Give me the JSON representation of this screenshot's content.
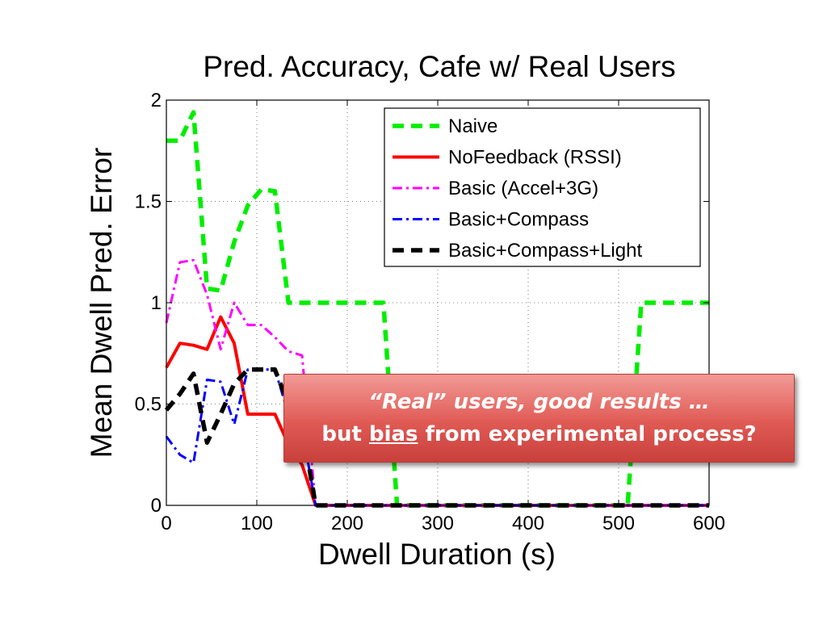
{
  "chart_data": {
    "type": "line",
    "title": "Pred. Accuracy, Cafe w/ Real Users",
    "xlabel": "Dwell Duration (s)",
    "ylabel": "Mean Dwell Pred. Error",
    "xlim": [
      0,
      600
    ],
    "ylim": [
      0,
      2
    ],
    "xticks": [
      "0",
      "100",
      "200",
      "300",
      "400",
      "500",
      "600"
    ],
    "yticks": [
      "0",
      "0.5",
      "1",
      "1.5",
      "2"
    ],
    "grid": true,
    "legend_position": "top-right",
    "series": [
      {
        "name": "Naive",
        "color": "#00ee00",
        "style": "dashed",
        "x": [
          0,
          15,
          30,
          45,
          60,
          75,
          90,
          105,
          120,
          135,
          150,
          165,
          180,
          195,
          210,
          225,
          240,
          255,
          270,
          300,
          400,
          495,
          510,
          525,
          540,
          600
        ],
        "y": [
          1.8,
          1.8,
          1.94,
          1.07,
          1.06,
          1.3,
          1.48,
          1.56,
          1.55,
          1.0,
          1.0,
          1.0,
          1.0,
          1.0,
          1.0,
          1.0,
          1.0,
          0.0,
          0.0,
          0.0,
          0.0,
          0.0,
          0.0,
          1.0,
          1.0,
          1.0
        ]
      },
      {
        "name": "NoFeedback (RSSI)",
        "color": "#ff0000",
        "style": "solid",
        "x": [
          0,
          15,
          30,
          45,
          60,
          75,
          90,
          105,
          120,
          135,
          150,
          165,
          200,
          300,
          400,
          500,
          600
        ],
        "y": [
          0.68,
          0.8,
          0.79,
          0.77,
          0.93,
          0.8,
          0.45,
          0.45,
          0.45,
          0.3,
          0.2,
          0.0,
          0.0,
          0.0,
          0.0,
          0.0,
          0.0
        ]
      },
      {
        "name": "Basic (Accel+3G)",
        "color": "#ff00ff",
        "style": "dashdot",
        "x": [
          0,
          15,
          30,
          45,
          60,
          75,
          90,
          105,
          120,
          135,
          150,
          165,
          200,
          300,
          400,
          500,
          600
        ],
        "y": [
          0.9,
          1.2,
          1.21,
          1.04,
          0.77,
          1.0,
          0.89,
          0.89,
          0.83,
          0.76,
          0.74,
          0.0,
          0.0,
          0.0,
          0.0,
          0.0,
          0.0
        ]
      },
      {
        "name": "Basic+Compass",
        "color": "#0000ff",
        "style": "dashdot",
        "x": [
          0,
          15,
          30,
          45,
          60,
          75,
          90,
          105,
          120,
          135,
          150,
          165,
          200,
          300,
          400,
          500,
          600
        ],
        "y": [
          0.34,
          0.25,
          0.21,
          0.62,
          0.61,
          0.4,
          0.67,
          0.67,
          0.67,
          0.45,
          0.38,
          0.0,
          0.0,
          0.0,
          0.0,
          0.0,
          0.0
        ]
      },
      {
        "name": "Basic+Compass+Light",
        "color": "#000000",
        "style": "dashed",
        "x": [
          0,
          15,
          30,
          45,
          60,
          75,
          90,
          105,
          120,
          135,
          150,
          165,
          200,
          300,
          400,
          500,
          600
        ],
        "y": [
          0.47,
          0.55,
          0.65,
          0.31,
          0.45,
          0.6,
          0.67,
          0.67,
          0.67,
          0.5,
          0.4,
          0.0,
          0.0,
          0.0,
          0.0,
          0.0,
          0.0
        ]
      }
    ]
  },
  "callout": {
    "line1": "“Real” users, good results …",
    "line2_before": "but ",
    "line2_emph": "bias",
    "line2_after": " from experimental process?"
  }
}
